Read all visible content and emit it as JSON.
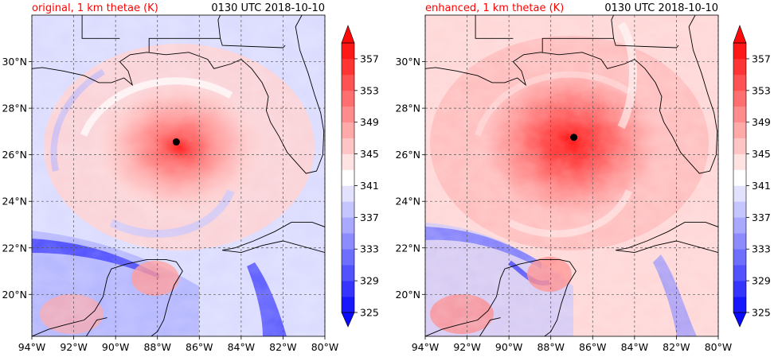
{
  "panels": [
    {
      "id": "original",
      "title_left": "original, 1 km thetae (K)",
      "title_right": "0130 UTC 2018-10-10",
      "storm_center": {
        "lon": -87.1,
        "lat": 26.55
      }
    },
    {
      "id": "enhanced",
      "title_left": "enhanced, 1 km thetae (K)",
      "title_right": "0130 UTC 2018-10-10",
      "storm_center": {
        "lon": -86.9,
        "lat": 26.75
      }
    }
  ],
  "map_extent": {
    "lon_min": -94,
    "lon_max": -80,
    "lat_min": 18.2,
    "lat_max": 32
  },
  "lon_ticks": [
    "94°W",
    "92°W",
    "90°W",
    "88°W",
    "86°W",
    "84°W",
    "82°W",
    "80°W"
  ],
  "lat_ticks": [
    "20°N",
    "22°N",
    "24°N",
    "26°N",
    "28°N",
    "30°N"
  ],
  "colorbar": {
    "variable": "thetae (K)",
    "range": [
      325,
      359
    ],
    "levels": [
      325,
      327,
      329,
      331,
      333,
      335,
      337,
      339,
      341,
      343,
      345,
      347,
      349,
      351,
      353,
      355,
      357,
      359
    ],
    "tick_labels": [
      "325",
      "329",
      "333",
      "337",
      "341",
      "345",
      "349",
      "353",
      "357"
    ],
    "extend": "both",
    "colormap": "bwr",
    "colors": {
      "low": "#0a0aff",
      "mid": "#ffffff",
      "high": "#ff0a0a"
    }
  },
  "colors": {
    "title_left": "#ff0000",
    "title_right": "#000000",
    "coastline": "#000000",
    "gridline": "#555555",
    "storm_center": "#000000"
  }
}
